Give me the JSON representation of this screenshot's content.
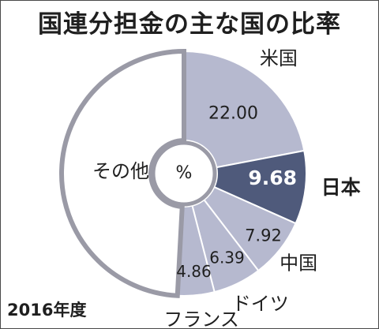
{
  "title": "国連分担金の主な国の比率",
  "year_note": "2016年度",
  "center_unit": "%",
  "colors": {
    "highlight_fill": "#4f5a7b",
    "slice_fill": "#b6b9cf",
    "other_fill": "#ffffff",
    "outline": "#9a9aa6",
    "text": "#1f1f1f",
    "highlight_text": "#ffffff"
  },
  "chart_data": {
    "type": "pie",
    "style": "donut",
    "unit": "%",
    "slices": [
      {
        "label": "米国",
        "value": 22.0,
        "value_text": "22.00",
        "highlight": false
      },
      {
        "label": "日本",
        "value": 9.68,
        "value_text": "9.68",
        "highlight": true
      },
      {
        "label": "中国",
        "value": 7.92,
        "value_text": "7.92",
        "highlight": false
      },
      {
        "label": "ドイツ",
        "value": 6.39,
        "value_text": "6.39",
        "highlight": false
      },
      {
        "label": "フランス",
        "value": 4.86,
        "value_text": "4.86",
        "highlight": false
      },
      {
        "label": "その他",
        "value": 49.15,
        "value_text": "",
        "highlight": false
      }
    ]
  }
}
